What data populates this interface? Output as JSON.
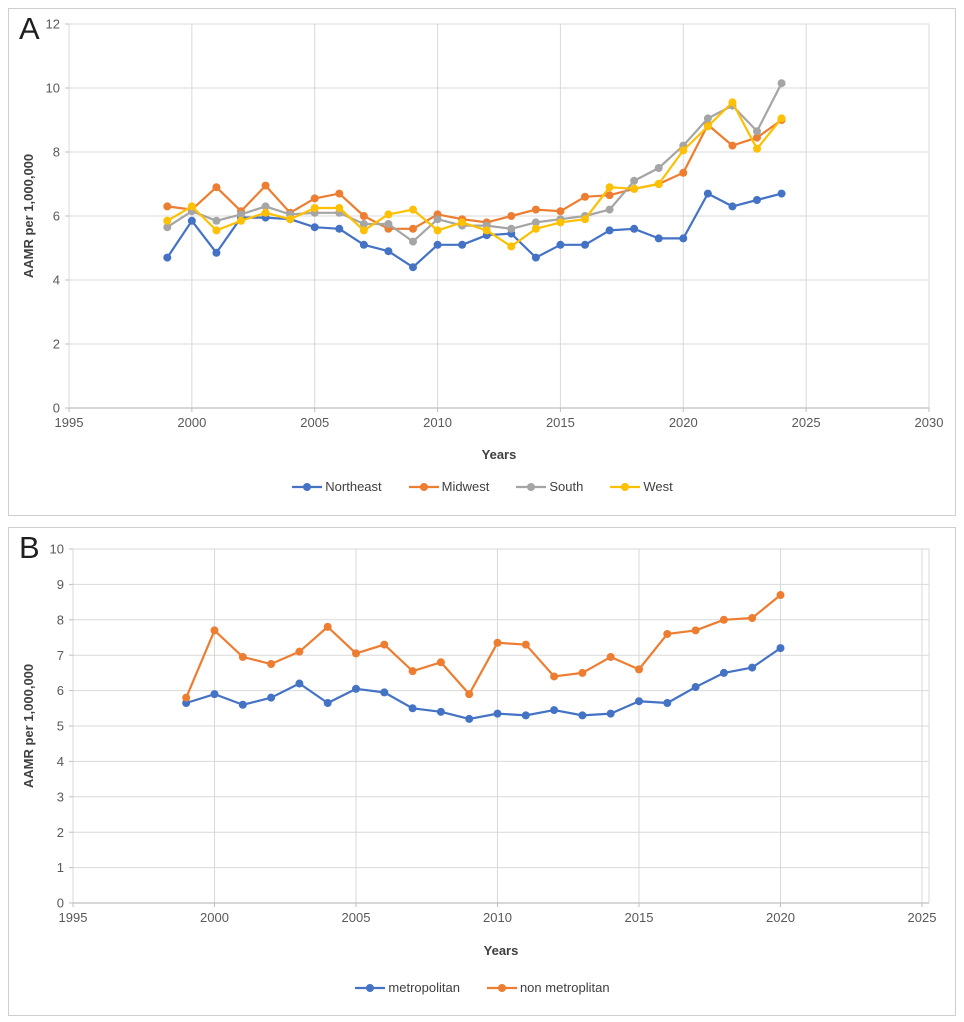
{
  "page": {
    "background": "#ffffff",
    "note": "Two-panel line figure, panels labeled A and B"
  },
  "colors": {
    "blue": "#4472C4",
    "orange": "#ED7D31",
    "gray": "#A5A5A5",
    "gold": "#FFC000",
    "gridline": "#d9d9d9",
    "axis_line": "#bfbfbf",
    "tick_text": "#595959",
    "title_text": "#404040"
  },
  "chart_data": [
    {
      "type": "line",
      "panel_label": "A",
      "xlabel": "Years",
      "ylabel": "AAMR per 1,000,000",
      "xlim": [
        1995,
        2030
      ],
      "ylim": [
        0,
        12
      ],
      "x_ticks": [
        1995,
        2000,
        2005,
        2010,
        2015,
        2020,
        2025,
        2030
      ],
      "y_ticks": [
        0,
        2,
        4,
        6,
        8,
        10,
        12
      ],
      "grid": true,
      "legend_position": "bottom",
      "x": [
        1999,
        2000,
        2001,
        2002,
        2003,
        2004,
        2005,
        2006,
        2007,
        2008,
        2009,
        2010,
        2011,
        2012,
        2013,
        2014,
        2015,
        2016,
        2017,
        2018,
        2019,
        2020,
        2021,
        2022,
        2023,
        2024
      ],
      "series": [
        {
          "name": "Northeast",
          "color": "#4472C4",
          "values": [
            4.7,
            5.85,
            4.85,
            5.95,
            5.95,
            5.9,
            5.65,
            5.6,
            5.1,
            4.9,
            4.4,
            5.1,
            5.1,
            5.4,
            5.45,
            4.7,
            5.1,
            5.1,
            5.55,
            5.6,
            5.3,
            5.3,
            6.7,
            6.3,
            6.5,
            6.7
          ]
        },
        {
          "name": "Midwest",
          "color": "#ED7D31",
          "values": [
            6.3,
            6.2,
            6.9,
            6.15,
            6.95,
            6.1,
            6.55,
            6.7,
            6.0,
            5.6,
            5.6,
            6.05,
            5.9,
            5.8,
            6.0,
            6.2,
            6.15,
            6.6,
            6.65,
            6.85,
            7.0,
            7.35,
            8.85,
            8.2,
            8.45,
            9.0
          ]
        },
        {
          "name": "South",
          "color": "#A5A5A5",
          "values": [
            5.65,
            6.15,
            5.85,
            6.05,
            6.3,
            6.05,
            6.1,
            6.1,
            5.75,
            5.75,
            5.2,
            5.9,
            5.7,
            5.7,
            5.6,
            5.8,
            5.9,
            6.0,
            6.2,
            7.1,
            7.5,
            8.2,
            9.05,
            9.45,
            8.65,
            10.15
          ]
        },
        {
          "name": "West",
          "color": "#FFC000",
          "values": [
            5.85,
            6.3,
            5.55,
            5.85,
            6.1,
            5.9,
            6.25,
            6.25,
            5.55,
            6.05,
            6.2,
            5.55,
            5.8,
            5.55,
            5.05,
            5.6,
            5.8,
            5.9,
            6.9,
            6.85,
            7.0,
            8.05,
            8.8,
            9.55,
            8.1,
            9.05
          ]
        }
      ]
    },
    {
      "type": "line",
      "panel_label": "B",
      "xlabel": "Years",
      "ylabel": "AAMR per 1,000,000",
      "xlim": [
        1995,
        2025
      ],
      "ylim": [
        0,
        10
      ],
      "x_ticks": [
        1995,
        2000,
        2005,
        2010,
        2015,
        2020,
        2025
      ],
      "y_ticks": [
        0,
        1,
        2,
        3,
        4,
        5,
        6,
        7,
        8,
        9,
        10
      ],
      "grid": true,
      "legend_position": "bottom",
      "x": [
        1999,
        2000,
        2001,
        2002,
        2003,
        2004,
        2005,
        2006,
        2007,
        2008,
        2009,
        2010,
        2011,
        2012,
        2013,
        2014,
        2015,
        2016,
        2017,
        2018,
        2019,
        2020
      ],
      "series": [
        {
          "name": "metropolitan",
          "color": "#4472C4",
          "values": [
            5.65,
            5.9,
            5.6,
            5.8,
            6.2,
            5.65,
            6.05,
            5.95,
            5.5,
            5.4,
            5.2,
            5.35,
            5.3,
            5.45,
            5.3,
            5.35,
            5.7,
            5.65,
            6.1,
            6.5,
            6.65,
            7.2
          ]
        },
        {
          "name": "non metroplitan",
          "color": "#ED7D31",
          "values": [
            5.8,
            7.7,
            6.95,
            6.75,
            7.1,
            7.8,
            7.05,
            7.3,
            6.55,
            6.8,
            5.9,
            7.35,
            7.3,
            6.4,
            6.5,
            6.95,
            6.6,
            7.6,
            7.7,
            8.0,
            8.05,
            8.7
          ]
        }
      ]
    }
  ]
}
